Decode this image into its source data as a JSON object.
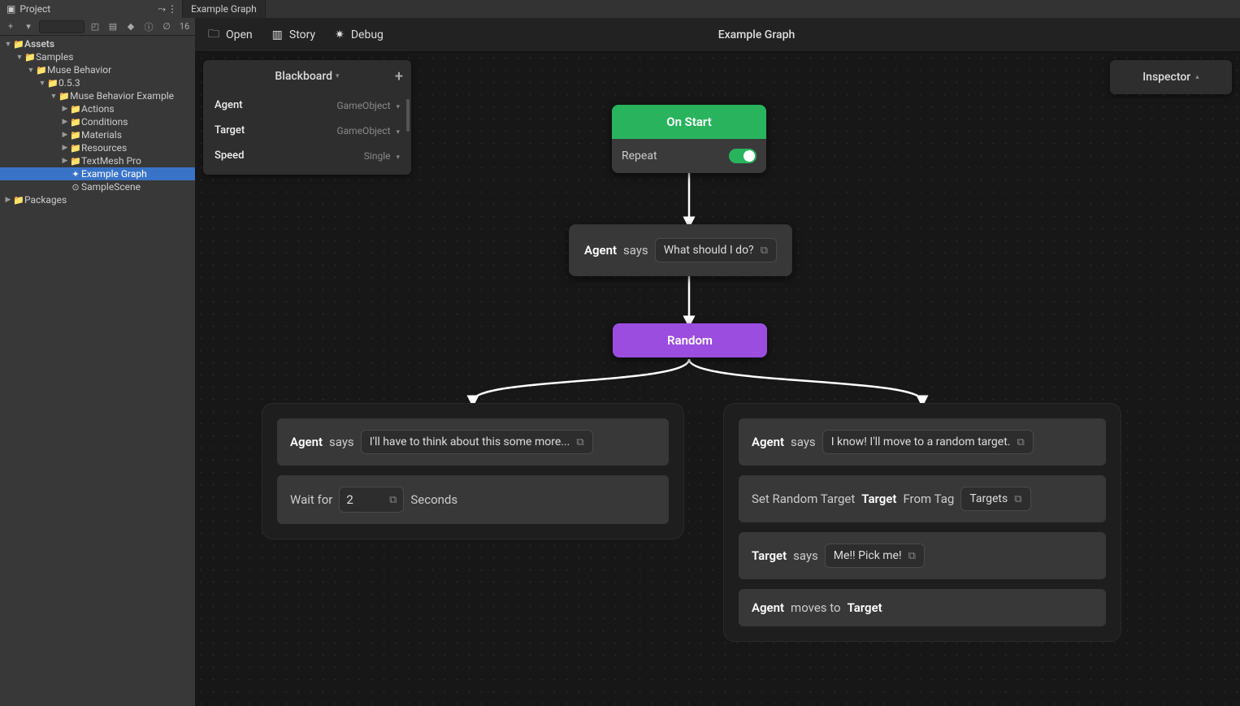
{
  "tabs": {
    "project": "Project",
    "graph": "Example Graph"
  },
  "toolbar": {
    "plus_glyph": "+",
    "hidden_count_label": "16"
  },
  "tree": [
    {
      "pad": 0,
      "arrow": "▼",
      "icon": "📁",
      "label": "Assets",
      "bold": true,
      "selected": false
    },
    {
      "pad": 1,
      "arrow": "▼",
      "icon": "📁",
      "label": "Samples",
      "bold": false,
      "selected": false
    },
    {
      "pad": 2,
      "arrow": "▼",
      "icon": "📁",
      "label": "Muse Behavior",
      "bold": false,
      "selected": false
    },
    {
      "pad": 3,
      "arrow": "▼",
      "icon": "📁",
      "label": "0.5.3",
      "bold": false,
      "selected": false
    },
    {
      "pad": 4,
      "arrow": "▼",
      "icon": "📁",
      "label": "Muse Behavior Example",
      "bold": false,
      "selected": false
    },
    {
      "pad": 5,
      "arrow": "▶",
      "icon": "📁",
      "label": "Actions",
      "bold": false,
      "selected": false
    },
    {
      "pad": 5,
      "arrow": "▶",
      "icon": "📁",
      "label": "Conditions",
      "bold": false,
      "selected": false
    },
    {
      "pad": 5,
      "arrow": "▶",
      "icon": "📁",
      "label": "Materials",
      "bold": false,
      "selected": false
    },
    {
      "pad": 5,
      "arrow": "▶",
      "icon": "📁",
      "label": "Resources",
      "bold": false,
      "selected": false
    },
    {
      "pad": 5,
      "arrow": "▶",
      "icon": "📁",
      "label": "TextMesh Pro",
      "bold": false,
      "selected": false
    },
    {
      "pad": 5,
      "arrow": "",
      "icon": "✦",
      "label": "Example Graph",
      "bold": false,
      "selected": true
    },
    {
      "pad": 5,
      "arrow": "",
      "icon": "⊙",
      "label": "SampleScene",
      "bold": false,
      "selected": false
    },
    {
      "pad": 0,
      "arrow": "▶",
      "icon": "📁",
      "label": "Packages",
      "bold": false,
      "selected": false
    }
  ],
  "graph_toolbar": {
    "open": "Open",
    "story": "Story",
    "debug": "Debug",
    "title": "Example Graph"
  },
  "blackboard": {
    "title": "Blackboard",
    "rows": [
      {
        "name": "Agent",
        "type": "GameObject"
      },
      {
        "name": "Target",
        "type": "GameObject"
      },
      {
        "name": "Speed",
        "type": "Single"
      }
    ]
  },
  "inspector_label": "Inspector",
  "nodes": {
    "start": {
      "title": "On Start",
      "repeat_label": "Repeat",
      "repeat_on": true,
      "header_color": "#29b35d"
    },
    "say1": {
      "agent": "Agent",
      "verb": "says",
      "text": "What should I do?"
    },
    "random": {
      "title": "Random",
      "color": "#9b4de0"
    },
    "left": {
      "row0": {
        "agent": "Agent",
        "verb": "says",
        "text": "I'll have to think about this some more..."
      },
      "row1": {
        "prefix": "Wait for",
        "value": "2",
        "suffix": "Seconds"
      }
    },
    "right": {
      "row0": {
        "agent": "Agent",
        "verb": "says",
        "text": "I know! I'll move to a random target."
      },
      "row1": {
        "prefix": "Set Random Target",
        "target": "Target",
        "mid": "From Tag",
        "tag": "Targets"
      },
      "row2": {
        "agent": "Target",
        "verb": "says",
        "text": "Me!! Pick me!"
      },
      "row3": {
        "agent": "Agent",
        "verb": "moves to",
        "target": "Target"
      }
    }
  }
}
